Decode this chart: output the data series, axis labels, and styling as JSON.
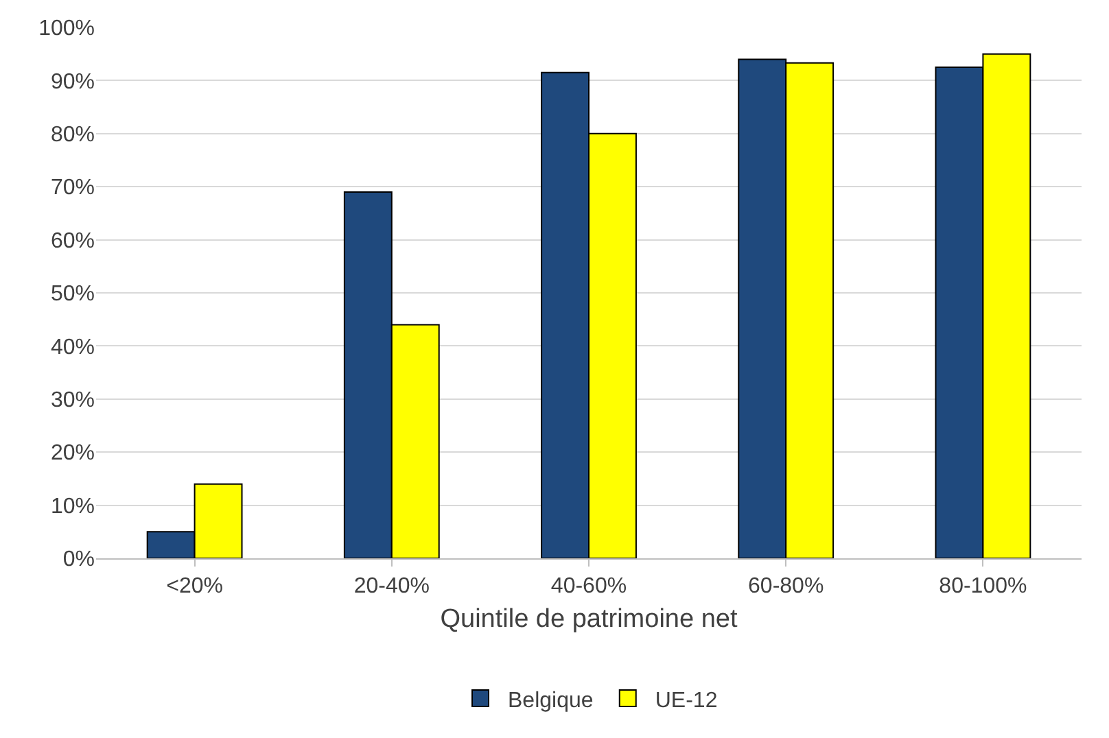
{
  "chart_data": {
    "type": "bar",
    "xlabel": "Quintile de patrimoine net",
    "categories": [
      "<20%",
      "20-40%",
      "40-60%",
      "60-80%",
      "80-100%"
    ],
    "series": [
      {
        "name": "Belgique",
        "color": "#1f497d",
        "values": [
          5,
          69,
          91.5,
          94,
          92.5
        ]
      },
      {
        "name": "UE-12",
        "color": "#ffff00",
        "values": [
          14,
          44,
          80,
          93.3,
          95
        ]
      }
    ],
    "ylim": [
      0,
      100
    ],
    "yticks": [
      {
        "value": 0,
        "label": "0%"
      },
      {
        "value": 10,
        "label": "10%"
      },
      {
        "value": 20,
        "label": "20%"
      },
      {
        "value": 30,
        "label": "30%"
      },
      {
        "value": 40,
        "label": "40%"
      },
      {
        "value": 50,
        "label": "50%"
      },
      {
        "value": 60,
        "label": "60%"
      },
      {
        "value": 70,
        "label": "70%"
      },
      {
        "value": 80,
        "label": "80%"
      },
      {
        "value": 90,
        "label": "90%"
      },
      {
        "value": 100,
        "label": "100%"
      }
    ],
    "grid": "y",
    "legend": "bottom"
  }
}
